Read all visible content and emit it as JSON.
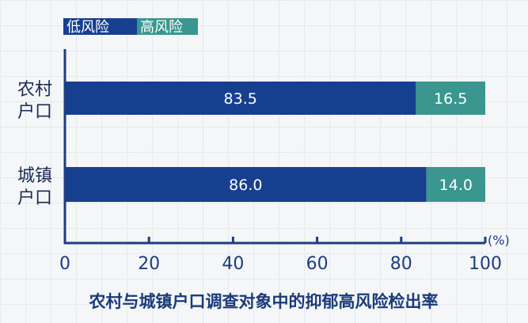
{
  "chart_data": {
    "type": "bar",
    "orientation": "horizontal",
    "stacked": true,
    "title": "农村与城镇户口调查对象中的抑郁高风险检出率",
    "categories": [
      "农村\n户口",
      "城镇\n户口"
    ],
    "category_lines": [
      [
        "农村",
        "户口"
      ],
      [
        "城镇",
        "户口"
      ]
    ],
    "series": [
      {
        "name": "低风险",
        "color": "#173f8f",
        "values": [
          83.5,
          86.0
        ],
        "labels": [
          "83.5",
          "86.0"
        ]
      },
      {
        "name": "高风险",
        "color": "#3a968f",
        "values": [
          16.5,
          14.0
        ],
        "labels": [
          "16.5",
          "14.0"
        ]
      }
    ],
    "xlim": [
      0,
      100
    ],
    "xticks": [
      0,
      20,
      40,
      60,
      80,
      100
    ],
    "xtick_labels": [
      "0",
      "20",
      "40",
      "60",
      "80",
      "100"
    ],
    "xunit": "(%)",
    "legend": "top-left",
    "grid": false
  }
}
